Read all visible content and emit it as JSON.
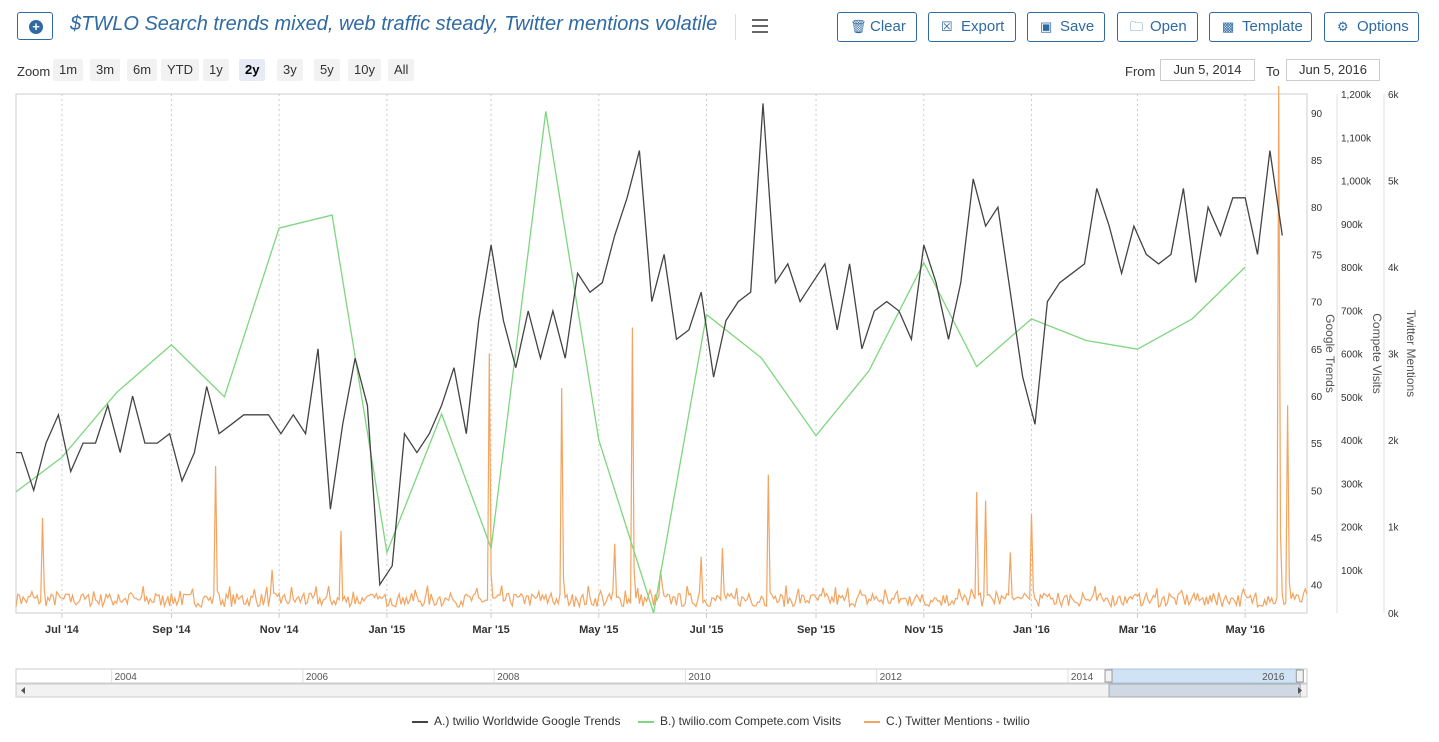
{
  "toolbar": {
    "title": "$TWLO Search trends mixed, web traffic steady, Twitter mentions volatile",
    "buttons": {
      "clear": "Clear",
      "export": "Export",
      "save": "Save",
      "open": "Open",
      "template": "Template",
      "options": "Options"
    }
  },
  "zoom": {
    "label": "Zoom",
    "options": [
      "1m",
      "3m",
      "6m",
      "YTD",
      "1y",
      "2y",
      "3y",
      "5y",
      "10y",
      "All"
    ],
    "active": "2y"
  },
  "range": {
    "from_label": "From",
    "from_value": "Jun 5, 2014",
    "to_label": "To",
    "to_value": "Jun 5, 2016"
  },
  "chart_data": {
    "type": "line",
    "x_range": [
      "2014-06-05",
      "2016-06-05"
    ],
    "x_ticks": [
      {
        "date": "2014-07-01",
        "label": "Jul '14"
      },
      {
        "date": "2014-09-01",
        "label": "Sep '14"
      },
      {
        "date": "2014-11-01",
        "label": "Nov '14"
      },
      {
        "date": "2015-01-01",
        "label": "Jan '15"
      },
      {
        "date": "2015-03-01",
        "label": "Mar '15"
      },
      {
        "date": "2015-05-01",
        "label": "May '15"
      },
      {
        "date": "2015-07-01",
        "label": "Jul '15"
      },
      {
        "date": "2015-09-01",
        "label": "Sep '15"
      },
      {
        "date": "2015-11-01",
        "label": "Nov '15"
      },
      {
        "date": "2016-01-01",
        "label": "Jan '16"
      },
      {
        "date": "2016-03-01",
        "label": "Mar '16"
      },
      {
        "date": "2016-05-01",
        "label": "May '16"
      }
    ],
    "axes": {
      "google": {
        "label": "Google Trends",
        "min": 37,
        "max": 92,
        "ticks": [
          40,
          45,
          50,
          55,
          60,
          65,
          70,
          75,
          80,
          85,
          90
        ]
      },
      "compete": {
        "label": "Compete Visits",
        "min": 0,
        "max": 1200000,
        "ticks": [
          100000,
          200000,
          300000,
          400000,
          500000,
          600000,
          700000,
          800000,
          900000,
          1000000,
          1100000,
          1200000
        ],
        "tick_labels": [
          "100k",
          "200k",
          "300k",
          "400k",
          "500k",
          "600k",
          "700k",
          "800k",
          "900k",
          "1,000k",
          "1,100k",
          "1,200k"
        ]
      },
      "twitter": {
        "label": "Twitter Mentions",
        "min": 0,
        "max": 6000,
        "ticks": [
          0,
          1000,
          2000,
          3000,
          4000,
          5000,
          6000
        ],
        "tick_labels": [
          "0k",
          "1k",
          "2k",
          "3k",
          "4k",
          "5k",
          "6k"
        ]
      }
    },
    "series": [
      {
        "name": "A.) twilio Worldwide Google Trends",
        "color": "#444444",
        "axis": "google",
        "points": [
          [
            "2014-06-05",
            54
          ],
          [
            "2014-06-08",
            54
          ],
          [
            "2014-06-15",
            50
          ],
          [
            "2014-06-22",
            55
          ],
          [
            "2014-06-29",
            58
          ],
          [
            "2014-07-06",
            52
          ],
          [
            "2014-07-13",
            55
          ],
          [
            "2014-07-20",
            55
          ],
          [
            "2014-07-27",
            59
          ],
          [
            "2014-08-03",
            54
          ],
          [
            "2014-08-10",
            60
          ],
          [
            "2014-08-17",
            55
          ],
          [
            "2014-08-24",
            55
          ],
          [
            "2014-08-31",
            56
          ],
          [
            "2014-09-07",
            51
          ],
          [
            "2014-09-14",
            54
          ],
          [
            "2014-09-21",
            61
          ],
          [
            "2014-09-28",
            56
          ],
          [
            "2014-10-05",
            57
          ],
          [
            "2014-10-12",
            58
          ],
          [
            "2014-10-19",
            58
          ],
          [
            "2014-10-26",
            58
          ],
          [
            "2014-11-02",
            56
          ],
          [
            "2014-11-09",
            58
          ],
          [
            "2014-11-16",
            56
          ],
          [
            "2014-11-23",
            65
          ],
          [
            "2014-11-30",
            48
          ],
          [
            "2014-12-07",
            57
          ],
          [
            "2014-12-14",
            64
          ],
          [
            "2014-12-21",
            59
          ],
          [
            "2014-12-28",
            40
          ],
          [
            "2015-01-04",
            42
          ],
          [
            "2015-01-11",
            56
          ],
          [
            "2015-01-18",
            54
          ],
          [
            "2015-01-25",
            56
          ],
          [
            "2015-02-01",
            59
          ],
          [
            "2015-02-08",
            63
          ],
          [
            "2015-02-15",
            56
          ],
          [
            "2015-02-22",
            68
          ],
          [
            "2015-03-01",
            76
          ],
          [
            "2015-03-08",
            68
          ],
          [
            "2015-03-15",
            63
          ],
          [
            "2015-03-22",
            69
          ],
          [
            "2015-03-29",
            64
          ],
          [
            "2015-04-05",
            69
          ],
          [
            "2015-04-12",
            64
          ],
          [
            "2015-04-19",
            73
          ],
          [
            "2015-04-26",
            71
          ],
          [
            "2015-05-03",
            72
          ],
          [
            "2015-05-10",
            77
          ],
          [
            "2015-05-17",
            81
          ],
          [
            "2015-05-24",
            86
          ],
          [
            "2015-05-31",
            70
          ],
          [
            "2015-06-07",
            75
          ],
          [
            "2015-06-14",
            66
          ],
          [
            "2015-06-21",
            67
          ],
          [
            "2015-06-28",
            71
          ],
          [
            "2015-07-05",
            62
          ],
          [
            "2015-07-12",
            68
          ],
          [
            "2015-07-19",
            70
          ],
          [
            "2015-07-26",
            71
          ],
          [
            "2015-08-02",
            91
          ],
          [
            "2015-08-09",
            72
          ],
          [
            "2015-08-16",
            74
          ],
          [
            "2015-08-23",
            70
          ],
          [
            "2015-08-30",
            72
          ],
          [
            "2015-09-06",
            74
          ],
          [
            "2015-09-13",
            67
          ],
          [
            "2015-09-20",
            74
          ],
          [
            "2015-09-27",
            65
          ],
          [
            "2015-10-04",
            69
          ],
          [
            "2015-10-11",
            70
          ],
          [
            "2015-10-18",
            69
          ],
          [
            "2015-10-25",
            66
          ],
          [
            "2015-11-01",
            76
          ],
          [
            "2015-11-08",
            72
          ],
          [
            "2015-11-15",
            66
          ],
          [
            "2015-11-22",
            72
          ],
          [
            "2015-11-29",
            83
          ],
          [
            "2015-12-06",
            78
          ],
          [
            "2015-12-13",
            80
          ],
          [
            "2015-12-20",
            71
          ],
          [
            "2015-12-27",
            62
          ],
          [
            "2016-01-03",
            57
          ],
          [
            "2016-01-10",
            70
          ],
          [
            "2016-01-17",
            72
          ],
          [
            "2016-01-24",
            73
          ],
          [
            "2016-01-31",
            74
          ],
          [
            "2016-02-07",
            82
          ],
          [
            "2016-02-14",
            78
          ],
          [
            "2016-02-21",
            73
          ],
          [
            "2016-02-28",
            78
          ],
          [
            "2016-03-06",
            75
          ],
          [
            "2016-03-13",
            74
          ],
          [
            "2016-03-20",
            75
          ],
          [
            "2016-03-27",
            82
          ],
          [
            "2016-04-03",
            72
          ],
          [
            "2016-04-10",
            80
          ],
          [
            "2016-04-17",
            77
          ],
          [
            "2016-04-24",
            81
          ],
          [
            "2016-05-01",
            81
          ],
          [
            "2016-05-08",
            75
          ],
          [
            "2016-05-15",
            86
          ],
          [
            "2016-05-22",
            77
          ]
        ]
      },
      {
        "name": "B.) twilio.com Compete.com Visits",
        "color": "#7ed67e",
        "axis": "compete",
        "points": [
          [
            "2014-06-05",
            280000
          ],
          [
            "2014-07-01",
            360000
          ],
          [
            "2014-08-01",
            510000
          ],
          [
            "2014-09-01",
            620000
          ],
          [
            "2014-10-01",
            500000
          ],
          [
            "2014-11-01",
            890000
          ],
          [
            "2014-12-01",
            920000
          ],
          [
            "2015-01-01",
            140000
          ],
          [
            "2015-02-01",
            460000
          ],
          [
            "2015-03-01",
            150000
          ],
          [
            "2015-04-01",
            1160000
          ],
          [
            "2015-05-01",
            400000
          ],
          [
            "2015-06-01",
            0
          ],
          [
            "2015-07-01",
            690000
          ],
          [
            "2015-08-01",
            590000
          ],
          [
            "2015-09-01",
            410000
          ],
          [
            "2015-10-01",
            560000
          ],
          [
            "2015-11-01",
            810000
          ],
          [
            "2015-12-01",
            570000
          ],
          [
            "2016-01-01",
            680000
          ],
          [
            "2016-02-01",
            630000
          ],
          [
            "2016-03-01",
            610000
          ],
          [
            "2016-04-01",
            680000
          ],
          [
            "2016-05-01",
            800000
          ]
        ]
      },
      {
        "name": "C.) Twitter Mentions - twilio",
        "color": "#f4a460",
        "axis": "twitter",
        "baseline": 150,
        "spikes": [
          [
            "2014-06-20",
            1100
          ],
          [
            "2014-09-26",
            1700
          ],
          [
            "2014-10-28",
            500
          ],
          [
            "2014-12-06",
            950
          ],
          [
            "2015-02-28",
            3000
          ],
          [
            "2015-04-10",
            2600
          ],
          [
            "2015-05-10",
            800
          ],
          [
            "2015-05-20",
            3300
          ],
          [
            "2015-06-05",
            500
          ],
          [
            "2015-06-28",
            650
          ],
          [
            "2015-07-10",
            750
          ],
          [
            "2015-08-05",
            1600
          ],
          [
            "2015-12-01",
            1400
          ],
          [
            "2015-12-06",
            1300
          ],
          [
            "2015-12-20",
            700
          ],
          [
            "2016-01-01",
            1150
          ],
          [
            "2016-05-20",
            6100
          ],
          [
            "2016-05-25",
            2400
          ]
        ]
      }
    ],
    "navigator": {
      "labels": [
        "2004",
        "2006",
        "2008",
        "2010",
        "2012",
        "2014",
        "2016"
      ],
      "range": [
        2003,
        2016.5
      ],
      "selected": [
        2014.43,
        2016.43
      ]
    }
  }
}
